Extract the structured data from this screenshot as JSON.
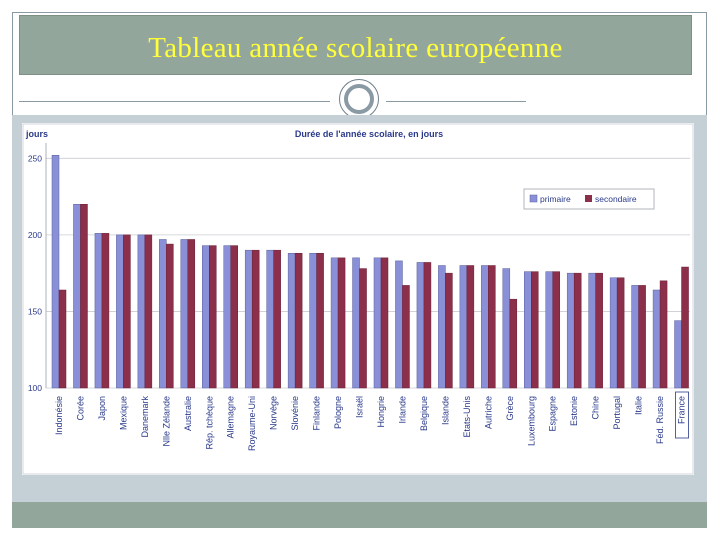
{
  "slide": {
    "title": "Tableau année scolaire européenne"
  },
  "colors": {
    "title_bg": "#93a69b",
    "title_text": "#ffff3a",
    "primaire": "#8a90d8",
    "secondaire": "#8c2f4a",
    "plot_bg": "#ffffff"
  },
  "chart_data": {
    "type": "bar",
    "title": "Durée de l'année scolaire, en jours",
    "ylabel": "jours",
    "xlabel": "",
    "ylim": [
      100,
      260
    ],
    "yticks": [
      100,
      150,
      200,
      250
    ],
    "grid": true,
    "legend_position": "top-right",
    "categories": [
      "Indonésie",
      "Corée",
      "Japon",
      "Mexique",
      "Danemark",
      "Nlle Zélande",
      "Australie",
      "Rép. tchèque",
      "Allemagne",
      "Royaume-Uni",
      "Norvège",
      "Slovénie",
      "Finlande",
      "Pologne",
      "Israël",
      "Hongrie",
      "Irlande",
      "Belgique",
      "Islande",
      "Etats-Unis",
      "Autriche",
      "Grèce",
      "Luxembourg",
      "Espagne",
      "Estonie",
      "Chine",
      "Portugal",
      "Italie",
      "Féd. Russie",
      "France"
    ],
    "series": [
      {
        "name": "primaire",
        "values": [
          252,
          220,
          201,
          200,
          200,
          197,
          197,
          193,
          193,
          190,
          190,
          188,
          188,
          185,
          185,
          185,
          183,
          182,
          180,
          180,
          180,
          178,
          176,
          176,
          175,
          175,
          172,
          167,
          164,
          144
        ]
      },
      {
        "name": "secondaire",
        "values": [
          164,
          220,
          201,
          200,
          200,
          194,
          197,
          193,
          193,
          190,
          190,
          188,
          188,
          185,
          178,
          185,
          167,
          182,
          175,
          180,
          180,
          158,
          176,
          176,
          175,
          175,
          172,
          167,
          170,
          179
        ]
      }
    ]
  }
}
